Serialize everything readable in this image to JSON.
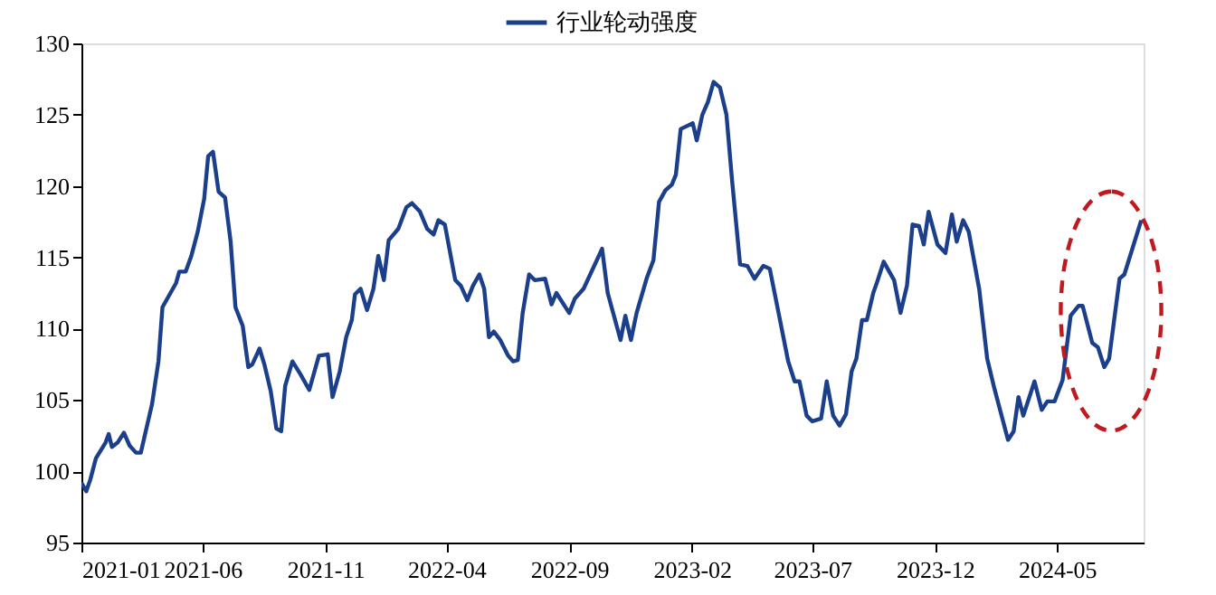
{
  "chart_data": {
    "type": "line",
    "legend": "top",
    "grid": false,
    "marker": "none",
    "line_style": "solid",
    "xlim": [
      "2021-01-01",
      "2024-08-17"
    ],
    "xticks": [
      "2021-01",
      "2021-06",
      "2021-11",
      "2022-04",
      "2022-09",
      "2023-02",
      "2023-07",
      "2023-12",
      "2024-05"
    ],
    "ylim": [
      95,
      130
    ],
    "yticks": [
      95,
      100,
      105,
      110,
      115,
      120,
      125,
      130
    ],
    "series": [
      {
        "name": "行业轮动强度",
        "color": "#1c3f8c",
        "x": [
          "2021-01-01",
          "2021-01-07",
          "2021-01-12",
          "2021-01-19",
          "2021-01-31",
          "2021-02-04",
          "2021-02-08",
          "2021-02-15",
          "2021-02-23",
          "2021-03-02",
          "2021-03-10",
          "2021-03-16",
          "2021-03-23",
          "2021-03-30",
          "2021-04-07",
          "2021-04-12",
          "2021-04-22",
          "2021-04-29",
          "2021-05-03",
          "2021-05-11",
          "2021-05-18",
          "2021-05-26",
          "2021-06-03",
          "2021-06-08",
          "2021-06-14",
          "2021-06-21",
          "2021-06-29",
          "2021-07-06",
          "2021-07-12",
          "2021-07-21",
          "2021-07-28",
          "2021-08-02",
          "2021-08-11",
          "2021-08-17",
          "2021-08-25",
          "2021-09-01",
          "2021-09-07",
          "2021-09-12",
          "2021-09-21",
          "2021-10-01",
          "2021-10-12",
          "2021-10-24",
          "2021-11-04",
          "2021-11-10",
          "2021-11-19",
          "2021-11-27",
          "2021-12-04",
          "2021-12-08",
          "2021-12-15",
          "2021-12-23",
          "2021-12-31",
          "2022-01-06",
          "2022-01-13",
          "2022-01-19",
          "2022-01-31",
          "2022-02-10",
          "2022-02-17",
          "2022-02-27",
          "2022-03-08",
          "2022-03-16",
          "2022-03-22",
          "2022-03-30",
          "2022-04-12",
          "2022-04-19",
          "2022-04-27",
          "2022-05-04",
          "2022-05-12",
          "2022-05-18",
          "2022-05-24",
          "2022-05-30",
          "2022-06-07",
          "2022-06-17",
          "2022-06-23",
          "2022-06-29",
          "2022-07-05",
          "2022-07-13",
          "2022-07-20",
          "2022-08-02",
          "2022-08-10",
          "2022-08-16",
          "2022-09-01",
          "2022-09-08",
          "2022-09-19",
          "2022-10-12",
          "2022-10-19",
          "2022-11-04",
          "2022-11-10",
          "2022-11-17",
          "2022-11-24",
          "2022-12-07",
          "2022-12-15",
          "2022-12-22",
          "2022-12-30",
          "2023-01-07",
          "2023-01-12",
          "2023-01-18",
          "2023-02-02",
          "2023-02-07",
          "2023-02-14",
          "2023-02-21",
          "2023-02-28",
          "2023-03-08",
          "2023-03-16",
          "2023-03-23",
          "2023-04-02",
          "2023-04-11",
          "2023-04-20",
          "2023-05-01",
          "2023-05-09",
          "2023-05-20",
          "2023-06-01",
          "2023-06-09",
          "2023-06-15",
          "2023-06-24",
          "2023-07-01",
          "2023-07-12",
          "2023-07-19",
          "2023-07-27",
          "2023-08-04",
          "2023-08-12",
          "2023-08-19",
          "2023-08-25",
          "2023-09-01",
          "2023-09-07",
          "2023-09-15",
          "2023-09-20",
          "2023-09-28",
          "2023-10-11",
          "2023-10-19",
          "2023-10-27",
          "2023-11-03",
          "2023-11-11",
          "2023-11-17",
          "2023-11-23",
          "2023-12-04",
          "2023-12-14",
          "2023-12-22",
          "2023-12-28",
          "2024-01-05",
          "2024-01-12",
          "2024-01-25",
          "2024-02-04",
          "2024-02-13",
          "2024-03-01",
          "2024-03-08",
          "2024-03-14",
          "2024-03-20",
          "2024-04-03",
          "2024-04-12",
          "2024-04-19",
          "2024-04-28",
          "2024-05-08",
          "2024-05-18",
          "2024-05-28",
          "2024-06-02",
          "2024-06-14",
          "2024-06-21",
          "2024-06-29",
          "2024-07-05",
          "2024-07-18",
          "2024-07-24",
          "2024-08-14"
        ],
        "values": [
          99.2,
          98.6,
          99.4,
          100.9,
          102.0,
          102.6,
          101.7,
          102.0,
          102.7,
          101.8,
          101.3,
          101.3,
          103.0,
          104.7,
          107.7,
          111.5,
          112.5,
          113.2,
          114.0,
          114.0,
          115.1,
          116.8,
          119.1,
          122.1,
          122.4,
          119.6,
          119.2,
          116.1,
          111.5,
          110.2,
          107.3,
          107.5,
          108.6,
          107.5,
          105.6,
          103.0,
          102.8,
          106.0,
          107.7,
          106.8,
          105.7,
          108.1,
          108.2,
          105.2,
          107.0,
          109.4,
          110.6,
          112.4,
          112.8,
          111.3,
          112.8,
          115.1,
          113.4,
          116.2,
          117.0,
          118.5,
          118.8,
          118.2,
          117.0,
          116.6,
          117.6,
          117.3,
          113.4,
          113.0,
          112.0,
          113.0,
          113.8,
          112.8,
          109.4,
          109.8,
          109.2,
          108.1,
          107.7,
          107.8,
          111.1,
          113.8,
          113.4,
          113.5,
          111.7,
          112.5,
          111.1,
          112.1,
          112.8,
          115.6,
          112.5,
          109.2,
          110.9,
          109.2,
          111.1,
          113.6,
          114.8,
          118.9,
          119.7,
          120.1,
          120.8,
          124.0,
          124.4,
          123.2,
          125.0,
          125.9,
          127.3,
          126.9,
          125.0,
          120.4,
          114.5,
          114.4,
          113.5,
          114.4,
          114.2,
          111.1,
          107.7,
          106.3,
          106.3,
          103.9,
          103.5,
          103.7,
          106.3,
          103.9,
          103.2,
          104.0,
          107.0,
          107.9,
          110.6,
          110.6,
          112.5,
          113.3,
          114.7,
          113.4,
          111.1,
          113.0,
          117.3,
          117.2,
          115.9,
          118.2,
          115.9,
          115.3,
          118.0,
          116.1,
          117.6,
          116.8,
          112.8,
          107.9,
          105.8,
          102.2,
          102.8,
          105.2,
          103.9,
          106.3,
          104.3,
          104.9,
          104.9,
          106.4,
          110.9,
          111.6,
          111.6,
          109.0,
          108.7,
          107.3,
          107.9,
          113.5,
          113.8,
          117.6
        ]
      }
    ]
  }
}
